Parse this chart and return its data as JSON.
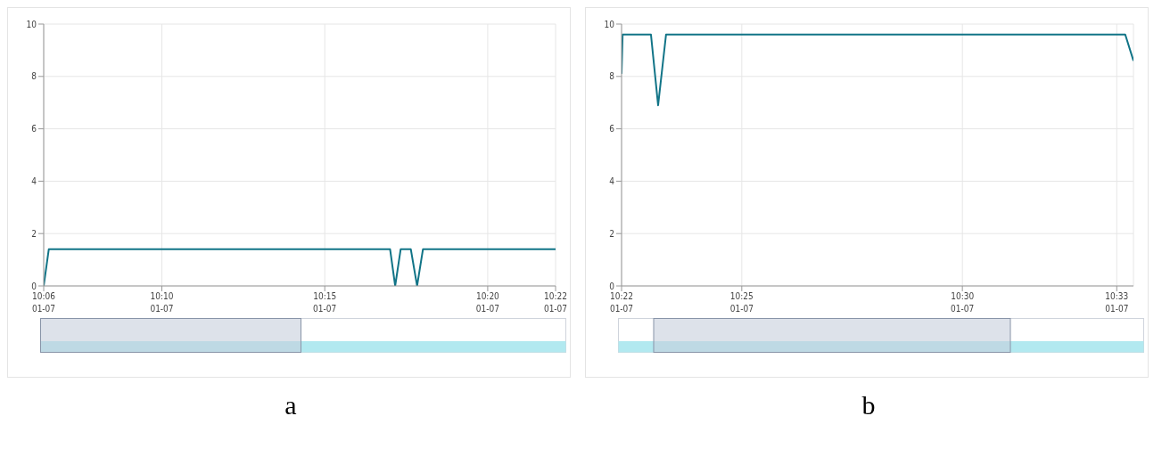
{
  "chart_data": [
    {
      "type": "line",
      "x": [
        10.1063,
        10.1089,
        10.2834,
        10.286,
        10.2888,
        10.294,
        10.2972,
        10.3002,
        10.368
      ],
      "series": [
        {
          "color": "#117487",
          "values": [
            0,
            1.4,
            1.4,
            0,
            1.4,
            1.4,
            0,
            1.4,
            1.4
          ]
        }
      ],
      "xlim": [
        10.1063,
        10.368
      ],
      "xticks": [
        {
          "value": 10.1063,
          "label": "10:06"
        },
        {
          "value": 10.1667,
          "label": "10:10"
        },
        {
          "value": 10.25,
          "label": "10:15"
        },
        {
          "value": 10.3333,
          "label": "10:20"
        },
        {
          "value": 10.368,
          "label": "10:22"
        }
      ],
      "annotations": [
        "a",
        "01-07",
        "01-07",
        "01-07",
        "01-07",
        "01-07"
      ],
      "ylim": [
        0,
        10
      ],
      "yticks": [
        0,
        2,
        4,
        6,
        8,
        10
      ],
      "grid": true,
      "marker": "none",
      "line_style": "solid"
    },
    {
      "type": "line",
      "x": [
        10.3713,
        10.3717,
        10.3824,
        10.3851,
        10.3881,
        10.5615,
        10.5646
      ],
      "series": [
        {
          "color": "#117487",
          "values": [
            8.1,
            9.6,
            9.6,
            6.9,
            9.6,
            9.6,
            8.6
          ]
        }
      ],
      "xlim": [
        10.3713,
        10.5646
      ],
      "xticks": [
        {
          "value": 10.3713,
          "label": "10:22"
        },
        {
          "value": 10.4167,
          "label": "10:25"
        },
        {
          "value": 10.5,
          "label": "10:30"
        },
        {
          "value": 10.5583,
          "label": "10:33"
        }
      ],
      "annotations": [
        "b",
        "01-07",
        "01-07",
        "01-07",
        "01-07"
      ],
      "ylim": [
        0,
        10
      ],
      "yticks": [
        0,
        2,
        4,
        6,
        8,
        10
      ],
      "grid": true,
      "marker": "none",
      "line_style": "solid"
    }
  ]
}
